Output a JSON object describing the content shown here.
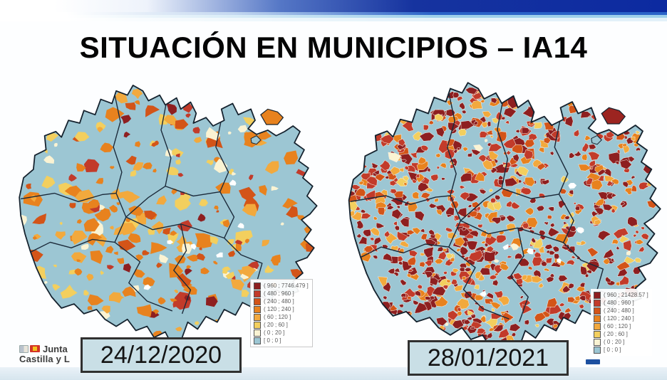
{
  "slide": {
    "title": "SITUACIÓN EN MUNICIPIOS – IA14"
  },
  "maps": [
    {
      "id": "left",
      "date_label": "24/12/2020",
      "base_color": "#9cc6d3",
      "exclave_color": "#e8821e",
      "seed": 7,
      "patch_count": 240,
      "municipal_borders": false,
      "bias": "north",
      "class_weights": [
        6,
        8,
        12,
        30,
        18,
        16,
        10
      ],
      "legend": [
        {
          "label": "( 960 ; 7746.479 ]",
          "color": "#8e1f20"
        },
        {
          "label": "( 480 ; 960 ]",
          "color": "#c23b2a"
        },
        {
          "label": "( 240 ; 480 ]",
          "color": "#d35418"
        },
        {
          "label": "( 120 ; 240 ]",
          "color": "#e8821e"
        },
        {
          "label": "( 60 ; 120 ]",
          "color": "#f2a93d"
        },
        {
          "label": "( 20 ; 60 ]",
          "color": "#f3cf5e"
        },
        {
          "label": "( 0 ; 20 ]",
          "color": "#faf3d3"
        },
        {
          "label": "[ 0 ; 0 ]",
          "color": "#9cc6d3"
        }
      ]
    },
    {
      "id": "right",
      "date_label": "28/01/2021",
      "base_color": "#9cc6d3",
      "exclave_color": "#9c2420",
      "seed": 23,
      "patch_count": 820,
      "municipal_borders": true,
      "bias": "west",
      "class_weights": [
        36,
        26,
        12,
        14,
        7,
        4,
        1
      ],
      "legend": [
        {
          "label": "( 960 ; 21428.57 ]",
          "color": "#8e1f20"
        },
        {
          "label": "( 480 ; 960 ]",
          "color": "#c23b2a"
        },
        {
          "label": "( 240 ; 480 ]",
          "color": "#d35418"
        },
        {
          "label": "( 120 ; 240 ]",
          "color": "#e8821e"
        },
        {
          "label": "( 60 ; 120 ]",
          "color": "#f2a93d"
        },
        {
          "label": "( 20 ; 60 ]",
          "color": "#f3cf5e"
        },
        {
          "label": "( 0 ; 20 ]",
          "color": "#faf3d3"
        },
        {
          "label": "[ 0 ; 0 ]",
          "color": "#9cc6d3"
        }
      ]
    }
  ],
  "logo": {
    "line1": "Junta",
    "line2": "Castilla y L"
  }
}
